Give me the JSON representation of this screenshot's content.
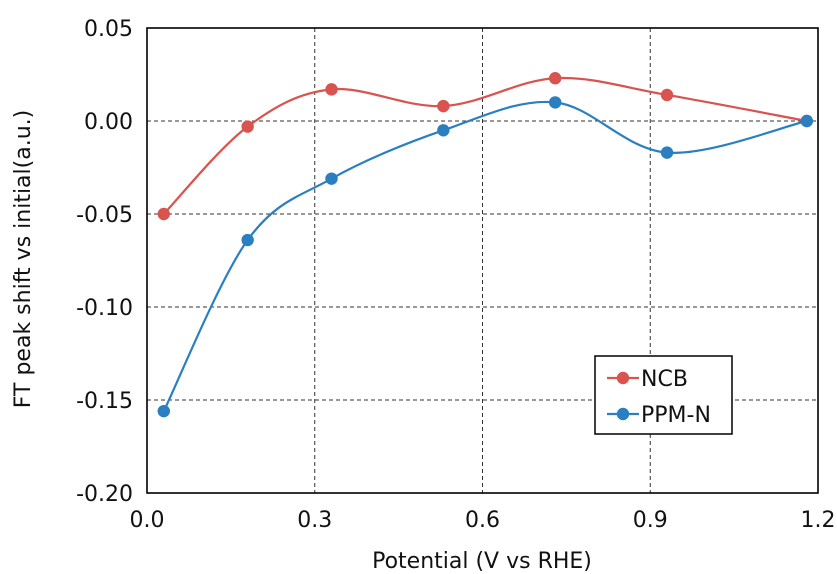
{
  "chart_data": {
    "type": "line",
    "xlabel": "Potential (V vs RHE)",
    "ylabel": "FT peak shift vs initial(a.u.)",
    "xlim": [
      0.0,
      1.2
    ],
    "ylim": [
      -0.2,
      0.05
    ],
    "x_ticks": [
      {
        "value": 0.0,
        "label": "0.0"
      },
      {
        "value": 0.3,
        "label": "0.3"
      },
      {
        "value": 0.6,
        "label": "0.6"
      },
      {
        "value": 0.9,
        "label": "0.9"
      },
      {
        "value": 1.2,
        "label": "1.2"
      }
    ],
    "y_ticks": [
      {
        "value": 0.05,
        "label": "0.05"
      },
      {
        "value": 0.0,
        "label": "0.00"
      },
      {
        "value": -0.05,
        "label": "-0.05"
      },
      {
        "value": -0.1,
        "label": "-0.10"
      },
      {
        "value": -0.15,
        "label": "-0.15"
      },
      {
        "value": -0.2,
        "label": "-0.20"
      }
    ],
    "grid": true,
    "legend_position": "bottom-right",
    "series": [
      {
        "name": "NCB",
        "color": "#d9534f",
        "x": [
          0.03,
          0.18,
          0.33,
          0.53,
          0.73,
          0.93,
          1.18
        ],
        "y": [
          -0.05,
          -0.003,
          0.017,
          0.008,
          0.023,
          0.014,
          0.0
        ]
      },
      {
        "name": "PPM-N",
        "color": "#2a7fc0",
        "x": [
          0.03,
          0.18,
          0.33,
          0.53,
          0.73,
          0.93,
          1.18
        ],
        "y": [
          -0.156,
          -0.064,
          -0.031,
          -0.005,
          0.01,
          -0.017,
          0.0
        ]
      }
    ]
  }
}
